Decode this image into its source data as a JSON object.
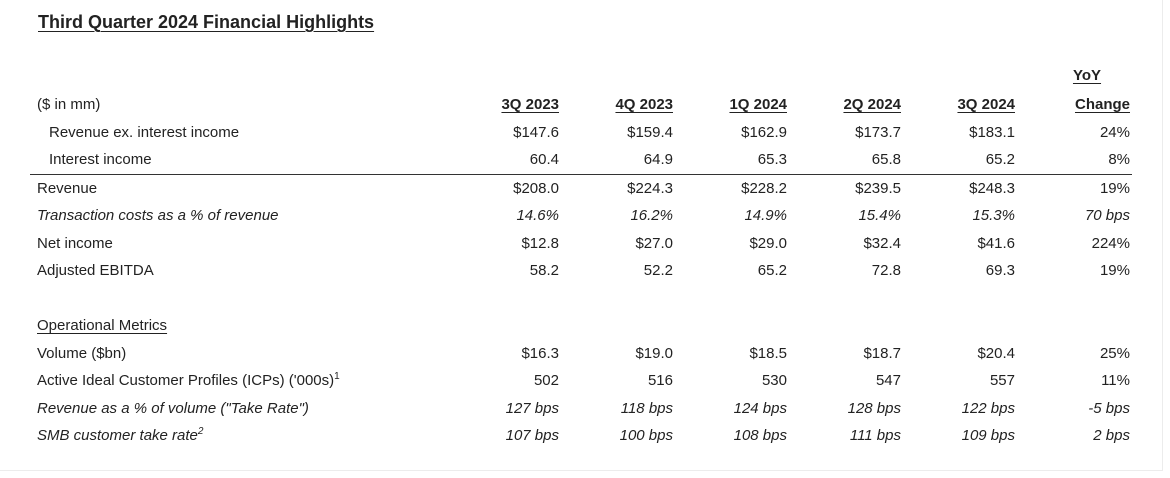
{
  "title": "Third Quarter 2024 Financial Highlights",
  "header": {
    "units": "($ in mm)",
    "columns": [
      "3Q 2023",
      "4Q 2023",
      "1Q 2024",
      "2Q 2024",
      "3Q 2024"
    ],
    "yoy_top": "YoY",
    "yoy_bottom": "Change"
  },
  "financial_rows": [
    {
      "label": "Revenue ex. interest income",
      "values": [
        "$147.6",
        "$159.4",
        "$162.9",
        "$173.7",
        "$183.1"
      ],
      "yoy": "24%"
    },
    {
      "label": "Interest income",
      "values": [
        "60.4",
        "64.9",
        "65.3",
        "65.8",
        "65.2"
      ],
      "yoy": "8%"
    },
    {
      "label": "Revenue",
      "values": [
        "$208.0",
        "$224.3",
        "$228.2",
        "$239.5",
        "$248.3"
      ],
      "yoy": "19%"
    },
    {
      "label": "Transaction costs as a % of revenue",
      "values": [
        "14.6%",
        "16.2%",
        "14.9%",
        "15.4%",
        "15.3%"
      ],
      "yoy": "70 bps"
    },
    {
      "label": "Net income",
      "values": [
        "$12.8",
        "$27.0",
        "$29.0",
        "$32.4",
        "$41.6"
      ],
      "yoy": "224%"
    },
    {
      "label": "Adjusted EBITDA",
      "values": [
        "58.2",
        "52.2",
        "65.2",
        "72.8",
        "69.3"
      ],
      "yoy": "19%"
    }
  ],
  "operational": {
    "title": "Operational Metrics",
    "rows": [
      {
        "label": "Volume ($bn)",
        "sup": "",
        "values": [
          "$16.3",
          "$19.0",
          "$18.5",
          "$18.7",
          "$20.4"
        ],
        "yoy": "25%"
      },
      {
        "label": "Active Ideal Customer Profiles (ICPs) ('000s)",
        "sup": "1",
        "values": [
          "502",
          "516",
          "530",
          "547",
          "557"
        ],
        "yoy": "11%"
      },
      {
        "label": "Revenue as a % of volume (\"Take Rate\")",
        "sup": "",
        "values": [
          "127 bps",
          "118 bps",
          "124 bps",
          "128 bps",
          "122 bps"
        ],
        "yoy": "-5 bps"
      },
      {
        "label": "SMB customer take rate",
        "sup": "2",
        "values": [
          "107 bps",
          "100 bps",
          "108 bps",
          "111 bps",
          "109 bps"
        ],
        "yoy": "2 bps"
      }
    ]
  }
}
